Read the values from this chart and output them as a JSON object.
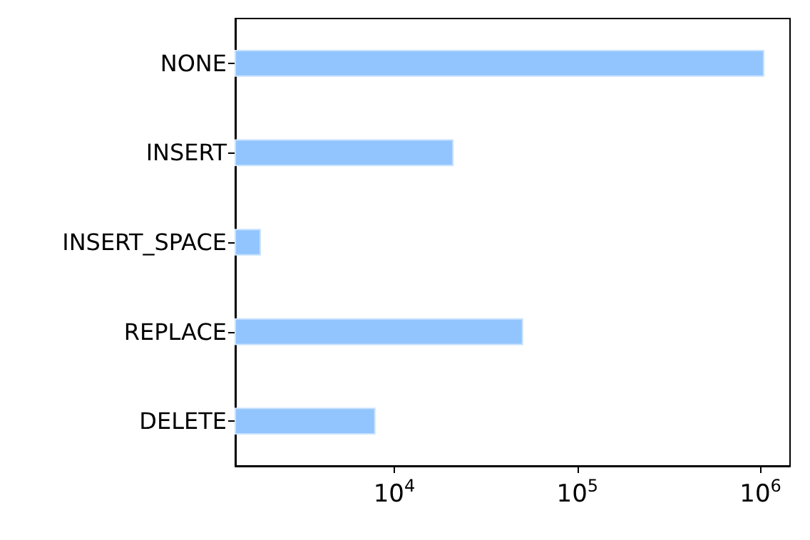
{
  "chart_data": {
    "type": "bar",
    "orientation": "horizontal",
    "log": "x",
    "categories": [
      "NONE",
      "INSERT",
      "INSERT_SPACE",
      "REPLACE",
      "DELETE"
    ],
    "values": [
      1050000,
      21100,
      1870,
      50600,
      7900
    ],
    "color": "#92c5fd",
    "xlim": [
      1355,
      1450000
    ],
    "xticks": [
      {
        "value": 10000,
        "label": "10$^{4}$"
      },
      {
        "value": 100000,
        "label": "10$^{5}$"
      },
      {
        "value": 1000000,
        "label": "10$^{6}$"
      }
    ],
    "grid": false
  }
}
